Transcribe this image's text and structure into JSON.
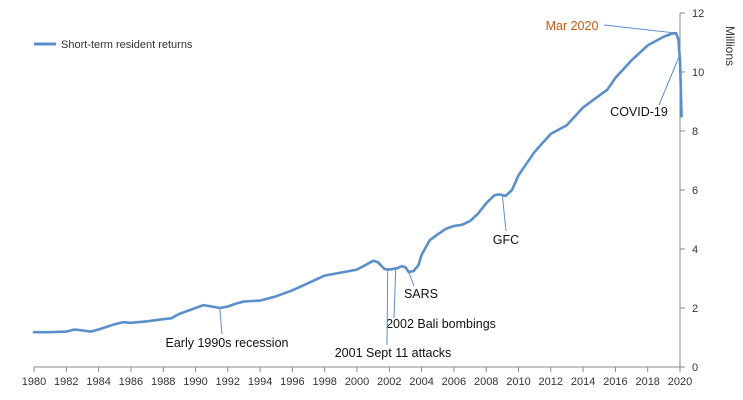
{
  "chart_data": {
    "type": "line",
    "title": "",
    "xlabel": "",
    "ylabel": "Millions",
    "xlim": [
      1980,
      2020
    ],
    "ylim": [
      0,
      12
    ],
    "x_ticks": [
      1980,
      1982,
      1984,
      1986,
      1988,
      1990,
      1992,
      1994,
      1996,
      1998,
      2000,
      2002,
      2004,
      2006,
      2008,
      2010,
      2012,
      2014,
      2016,
      2018,
      2020
    ],
    "y_ticks": [
      0,
      2,
      4,
      6,
      8,
      10,
      12
    ],
    "legend_position": "top-left",
    "series": [
      {
        "name": "Short-term resident returns",
        "color": "#5b8fc9",
        "points": [
          [
            1980.0,
            1.18
          ],
          [
            1981.0,
            1.18
          ],
          [
            1982.0,
            1.2
          ],
          [
            1982.5,
            1.27
          ],
          [
            1983.0,
            1.24
          ],
          [
            1983.5,
            1.2
          ],
          [
            1984.0,
            1.27
          ],
          [
            1985.0,
            1.45
          ],
          [
            1985.5,
            1.52
          ],
          [
            1986.0,
            1.5
          ],
          [
            1987.0,
            1.55
          ],
          [
            1988.0,
            1.62
          ],
          [
            1988.5,
            1.65
          ],
          [
            1989.0,
            1.8
          ],
          [
            1990.0,
            2.0
          ],
          [
            1990.5,
            2.1
          ],
          [
            1991.0,
            2.05
          ],
          [
            1991.5,
            2.0
          ],
          [
            1992.0,
            2.05
          ],
          [
            1992.5,
            2.15
          ],
          [
            1993.0,
            2.22
          ],
          [
            1994.0,
            2.25
          ],
          [
            1995.0,
            2.4
          ],
          [
            1996.0,
            2.6
          ],
          [
            1997.0,
            2.85
          ],
          [
            1998.0,
            3.1
          ],
          [
            1999.0,
            3.2
          ],
          [
            2000.0,
            3.3
          ],
          [
            2001.0,
            3.6
          ],
          [
            2001.3,
            3.55
          ],
          [
            2001.7,
            3.32
          ],
          [
            2002.0,
            3.3
          ],
          [
            2002.5,
            3.35
          ],
          [
            2002.8,
            3.42
          ],
          [
            2003.0,
            3.38
          ],
          [
            2003.2,
            3.22
          ],
          [
            2003.5,
            3.25
          ],
          [
            2003.8,
            3.45
          ],
          [
            2004.0,
            3.8
          ],
          [
            2004.5,
            4.3
          ],
          [
            2005.0,
            4.5
          ],
          [
            2005.5,
            4.68
          ],
          [
            2006.0,
            4.78
          ],
          [
            2006.5,
            4.82
          ],
          [
            2007.0,
            4.95
          ],
          [
            2007.5,
            5.2
          ],
          [
            2008.0,
            5.55
          ],
          [
            2008.5,
            5.82
          ],
          [
            2008.8,
            5.85
          ],
          [
            2009.2,
            5.8
          ],
          [
            2009.6,
            6.0
          ],
          [
            2010.0,
            6.5
          ],
          [
            2011.0,
            7.3
          ],
          [
            2012.0,
            7.9
          ],
          [
            2013.0,
            8.2
          ],
          [
            2014.0,
            8.8
          ],
          [
            2015.0,
            9.2
          ],
          [
            2015.5,
            9.4
          ],
          [
            2016.0,
            9.8
          ],
          [
            2017.0,
            10.4
          ],
          [
            2018.0,
            10.9
          ],
          [
            2019.0,
            11.2
          ],
          [
            2019.5,
            11.3
          ],
          [
            2019.75,
            11.32
          ],
          [
            2019.9,
            11.1
          ],
          [
            2020.0,
            10.4
          ],
          [
            2020.1,
            8.5
          ]
        ]
      }
    ],
    "annotations": [
      {
        "label": "Mar 2020",
        "x": 2019.75,
        "y": 11.32,
        "color": "#c55a11"
      },
      {
        "label": "COVID-19",
        "x": 2020.0,
        "y": 10.6,
        "color": "#111111"
      },
      {
        "label": "GFC",
        "x": 2009.0,
        "y": 5.82,
        "color": "#111111"
      },
      {
        "label": "SARS",
        "x": 2003.2,
        "y": 3.22,
        "color": "#111111"
      },
      {
        "label": "2002 Bali bombings",
        "x": 2002.4,
        "y": 3.35,
        "color": "#111111"
      },
      {
        "label": "2001 Sept 11 attacks",
        "x": 2001.9,
        "y": 3.32,
        "color": "#111111"
      },
      {
        "label": "Early 1990s recession",
        "x": 1991.5,
        "y": 2.0,
        "color": "#111111"
      }
    ]
  }
}
